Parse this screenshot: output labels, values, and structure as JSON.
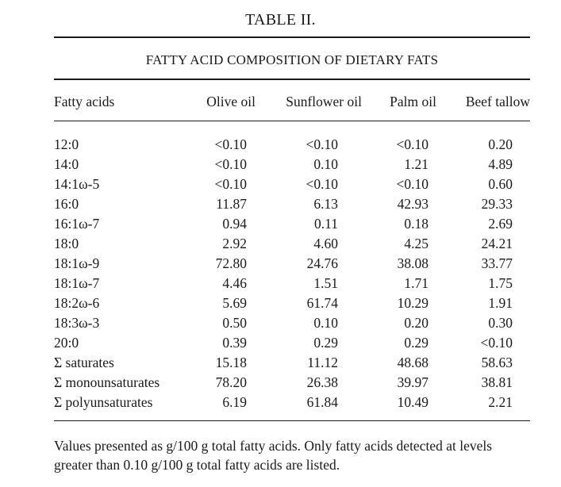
{
  "table": {
    "title": "TABLE II.",
    "caption": "FATTY ACID COMPOSITION OF DIETARY FATS",
    "columns": [
      "Fatty acids",
      "Olive oil",
      "Sunflower oil",
      "Palm oil",
      "Beef tallow"
    ],
    "rows": [
      {
        "label": "12:0",
        "values": [
          "<0.10",
          "<0.10",
          "<0.10",
          "0.20"
        ]
      },
      {
        "label": "14:0",
        "values": [
          "<0.10",
          "0.10",
          "1.21",
          "4.89"
        ]
      },
      {
        "label": "14:1ω-5",
        "values": [
          "<0.10",
          "<0.10",
          "<0.10",
          "0.60"
        ]
      },
      {
        "label": "16:0",
        "values": [
          "11.87",
          "6.13",
          "42.93",
          "29.33"
        ]
      },
      {
        "label": "16:1ω-7",
        "values": [
          "0.94",
          "0.11",
          "0.18",
          "2.69"
        ]
      },
      {
        "label": "18:0",
        "values": [
          "2.92",
          "4.60",
          "4.25",
          "24.21"
        ]
      },
      {
        "label": "18:1ω-9",
        "values": [
          "72.80",
          "24.76",
          "38.08",
          "33.77"
        ]
      },
      {
        "label": "18:1ω-7",
        "values": [
          "4.46",
          "1.51",
          "1.71",
          "1.75"
        ]
      },
      {
        "label": "18:2ω-6",
        "values": [
          "5.69",
          "61.74",
          "10.29",
          "1.91"
        ]
      },
      {
        "label": "18:3ω-3",
        "values": [
          "0.50",
          "0.10",
          "0.20",
          "0.30"
        ]
      },
      {
        "label": "20:0",
        "values": [
          "0.39",
          "0.29",
          "0.29",
          "<0.10"
        ]
      },
      {
        "label": "Σ saturates",
        "values": [
          "15.18",
          "11.12",
          "48.68",
          "58.63"
        ]
      },
      {
        "label": "Σ monounsaturates",
        "values": [
          "78.20",
          "26.38",
          "39.97",
          "38.81"
        ]
      },
      {
        "label": "Σ polyunsaturates",
        "values": [
          "6.19",
          "61.84",
          "10.49",
          "2.21"
        ]
      }
    ],
    "footnote": "Values presented as g/100 g total fatty acids. Only fatty acids detected at levels greater than 0.10 g/100 g total fatty acids are listed."
  }
}
